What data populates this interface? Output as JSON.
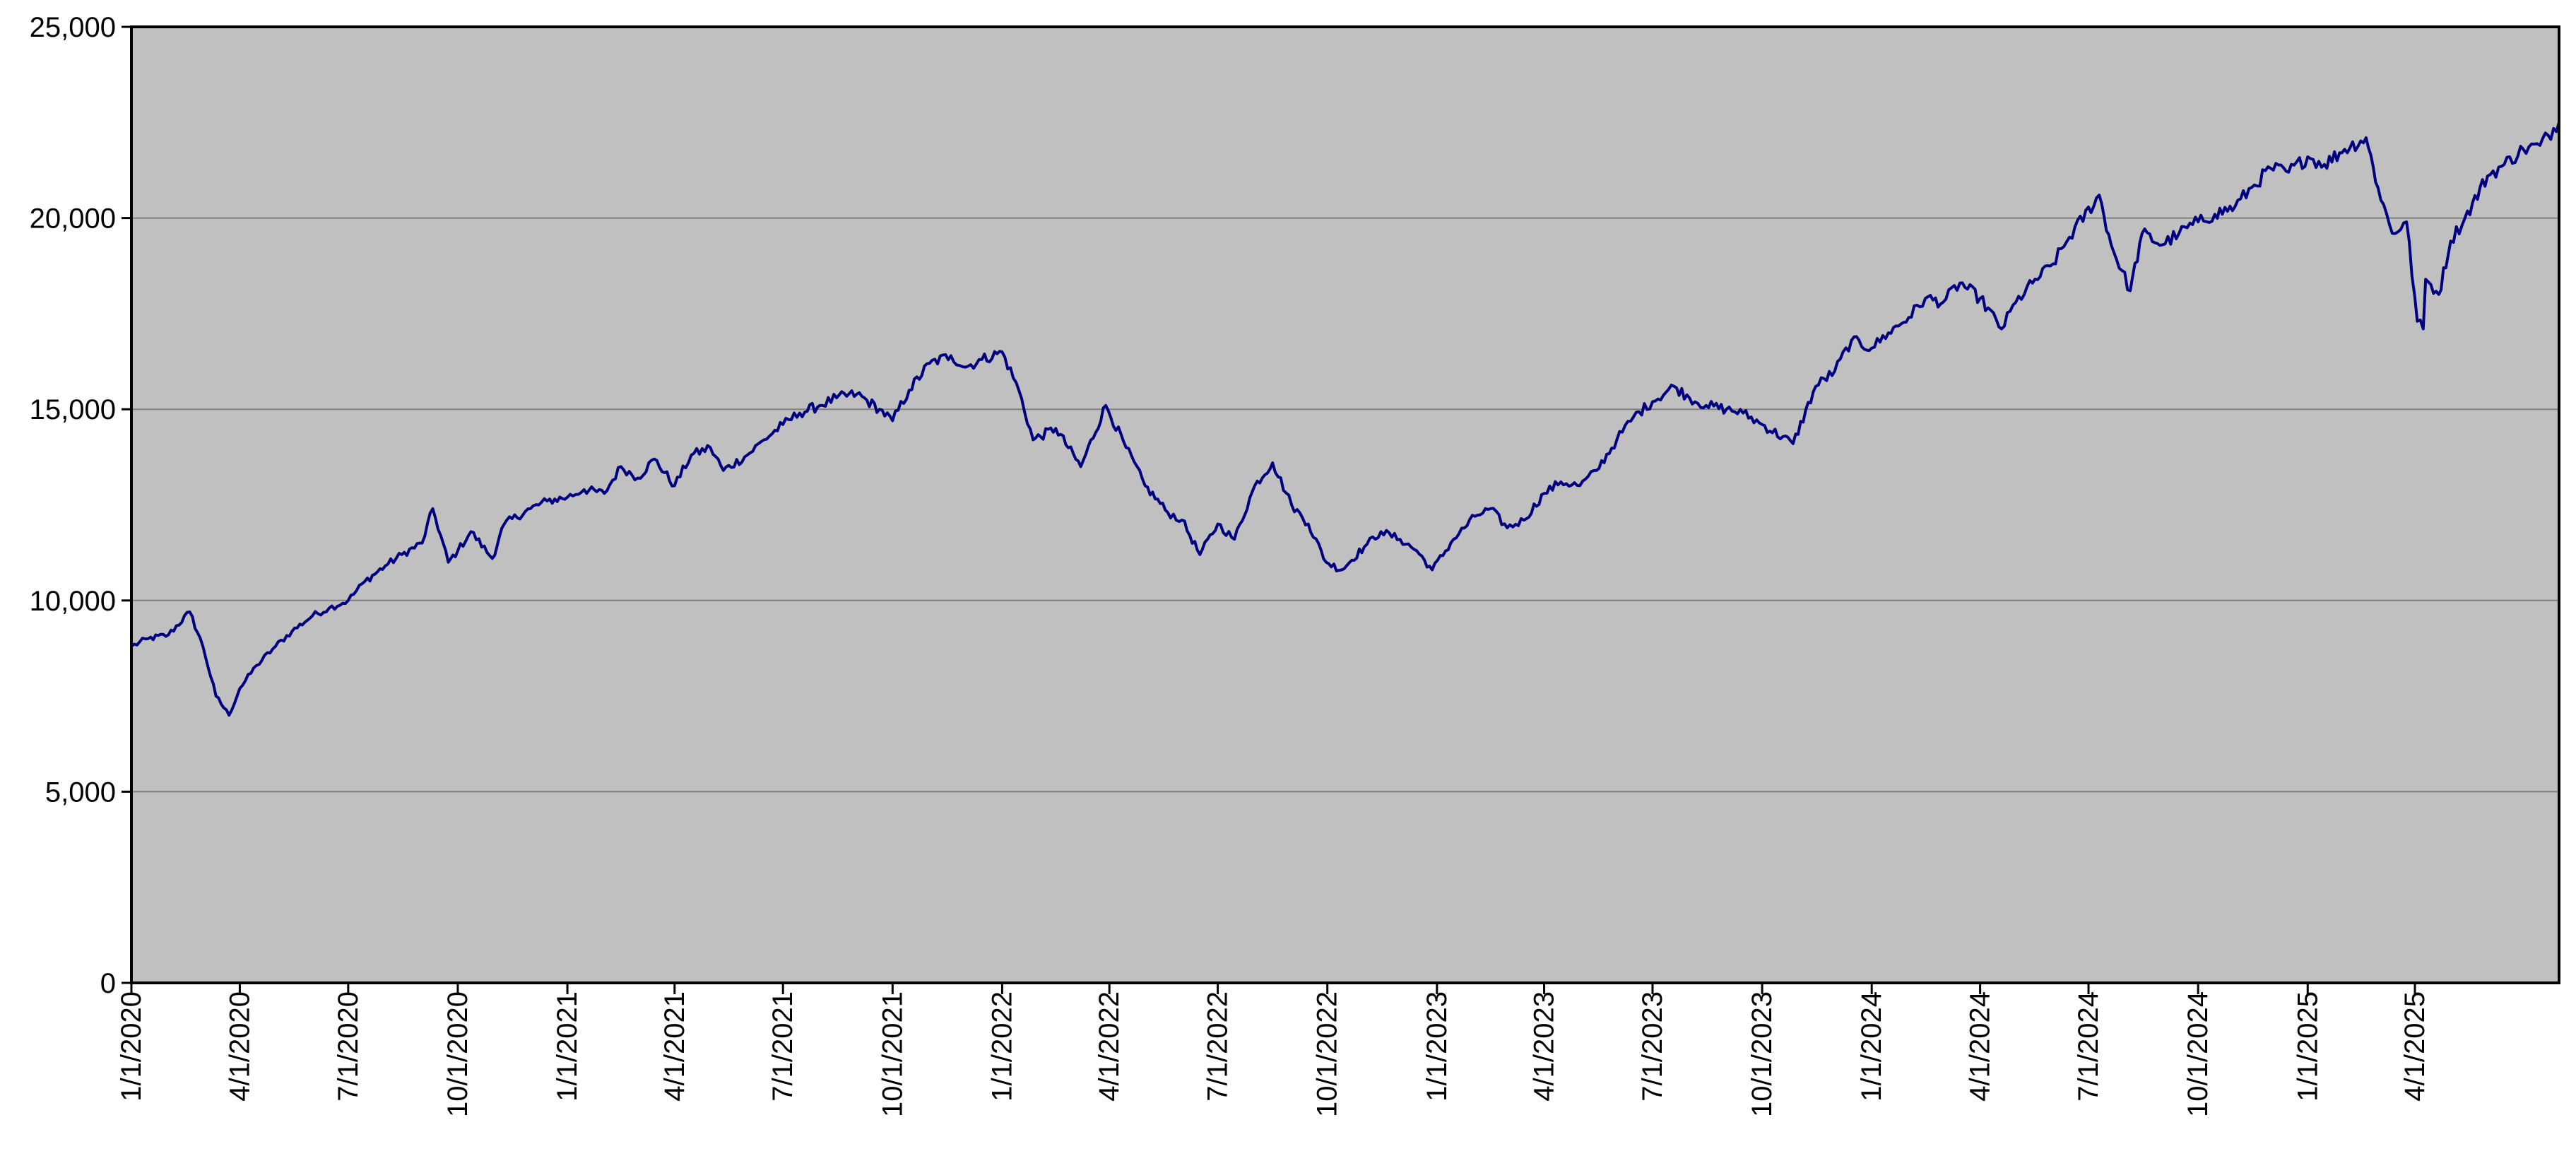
{
  "chart_data": {
    "type": "line",
    "title": "",
    "xlabel": "",
    "ylabel": "",
    "ylim": [
      0,
      25000
    ],
    "y_ticks": [
      0,
      5000,
      10000,
      15000,
      20000,
      25000
    ],
    "y_tick_labels": [
      "0",
      "5,000",
      "10,000",
      "15,000",
      "20,000",
      "25,000"
    ],
    "x_range": [
      "2020-01-01",
      "2025-07-31"
    ],
    "x_ticks": [
      "2020-01-01",
      "2020-04-01",
      "2020-07-01",
      "2020-10-01",
      "2021-01-01",
      "2021-04-01",
      "2021-07-01",
      "2021-10-01",
      "2022-01-01",
      "2022-04-01",
      "2022-07-01",
      "2022-10-01",
      "2023-01-01",
      "2023-04-01",
      "2023-07-01",
      "2023-10-01",
      "2024-01-01",
      "2024-04-01",
      "2024-07-01",
      "2024-10-01",
      "2025-01-01",
      "2025-04-01"
    ],
    "x_tick_labels": [
      "1/1/2020",
      "4/1/2020",
      "7/1/2020",
      "10/1/2020",
      "1/1/2021",
      "4/1/2021",
      "7/1/2021",
      "10/1/2021",
      "1/1/2022",
      "4/1/2022",
      "7/1/2022",
      "10/1/2022",
      "1/1/2023",
      "4/1/2023",
      "7/1/2023",
      "10/1/2023",
      "1/1/2024",
      "4/1/2024",
      "7/1/2024",
      "10/1/2024",
      "1/1/2025",
      "4/1/2025"
    ],
    "grid": true,
    "legend": "none",
    "colors": {
      "plot_background": "#c0c0c0",
      "line": "#000080",
      "gridline": "#808080",
      "axis": "#000000"
    },
    "series": [
      {
        "x": [
          "2020-01-01",
          "2020-01-15",
          "2020-02-01",
          "2020-02-19",
          "2020-03-01",
          "2020-03-12",
          "2020-03-23",
          "2020-04-01",
          "2020-04-15",
          "2020-05-01",
          "2020-05-15",
          "2020-06-01",
          "2020-06-15",
          "2020-07-01",
          "2020-07-15",
          "2020-08-01",
          "2020-08-15",
          "2020-09-01",
          "2020-09-10",
          "2020-09-23",
          "2020-10-01",
          "2020-10-12",
          "2020-10-30",
          "2020-11-09",
          "2020-12-01",
          "2020-12-15",
          "2021-01-01",
          "2021-01-15",
          "2021-02-01",
          "2021-02-15",
          "2021-03-01",
          "2021-03-15",
          "2021-04-01",
          "2021-04-15",
          "2021-05-01",
          "2021-05-12",
          "2021-06-01",
          "2021-06-15",
          "2021-07-01",
          "2021-07-15",
          "2021-08-01",
          "2021-08-15",
          "2021-09-01",
          "2021-09-20",
          "2021-10-01",
          "2021-10-15",
          "2021-11-01",
          "2021-11-19",
          "2021-12-01",
          "2021-12-15",
          "2022-01-01",
          "2022-01-15",
          "2022-01-27",
          "2022-02-15",
          "2022-03-08",
          "2022-03-29",
          "2022-04-15",
          "2022-05-01",
          "2022-05-20",
          "2022-06-01",
          "2022-06-16",
          "2022-07-01",
          "2022-07-15",
          "2022-08-01",
          "2022-08-16",
          "2022-09-01",
          "2022-09-15",
          "2022-09-30",
          "2022-10-13",
          "2022-11-01",
          "2022-11-15",
          "2022-12-01",
          "2022-12-15",
          "2022-12-28",
          "2023-01-15",
          "2023-02-02",
          "2023-02-15",
          "2023-03-01",
          "2023-03-15",
          "2023-04-01",
          "2023-04-15",
          "2023-05-01",
          "2023-05-15",
          "2023-06-01",
          "2023-06-15",
          "2023-07-01",
          "2023-07-19",
          "2023-08-01",
          "2023-08-15",
          "2023-09-01",
          "2023-09-15",
          "2023-10-01",
          "2023-10-27",
          "2023-11-15",
          "2023-12-01",
          "2023-12-15",
          "2024-01-01",
          "2024-01-15",
          "2024-02-01",
          "2024-02-15",
          "2024-03-01",
          "2024-03-15",
          "2024-04-01",
          "2024-04-19",
          "2024-05-01",
          "2024-05-15",
          "2024-06-01",
          "2024-06-15",
          "2024-07-10",
          "2024-07-20",
          "2024-08-05",
          "2024-08-15",
          "2024-09-01",
          "2024-09-15",
          "2024-10-01",
          "2024-10-15",
          "2024-11-01",
          "2024-11-15",
          "2024-12-01",
          "2024-12-16",
          "2025-01-01",
          "2025-01-15",
          "2025-02-01",
          "2025-02-19",
          "2025-03-01",
          "2025-03-13",
          "2025-03-25",
          "2025-04-03",
          "2025-04-08",
          "2025-04-10",
          "2025-04-21",
          "2025-05-01",
          "2025-05-13",
          "2025-06-01",
          "2025-06-15",
          "2025-07-01",
          "2025-07-15",
          "2025-07-31"
        ],
        "values": [
          8800,
          9000,
          9100,
          9700,
          8800,
          7500,
          7000,
          7700,
          8300,
          8800,
          9200,
          9600,
          9800,
          10000,
          10500,
          10900,
          11200,
          11500,
          12400,
          11000,
          11300,
          11800,
          11100,
          12000,
          12400,
          12600,
          12700,
          12900,
          12800,
          13500,
          13200,
          13700,
          13000,
          13800,
          14000,
          13400,
          13800,
          14200,
          14600,
          14900,
          15100,
          15300,
          15400,
          15000,
          14700,
          15500,
          16200,
          16400,
          16100,
          16300,
          16500,
          15500,
          14200,
          14500,
          13500,
          15100,
          14000,
          13000,
          12300,
          12100,
          11200,
          12000,
          11600,
          13000,
          13600,
          12500,
          12000,
          11000,
          10800,
          11400,
          11800,
          11600,
          11300,
          10800,
          11600,
          12200,
          12400,
          11900,
          12100,
          12800,
          13100,
          13000,
          13400,
          14200,
          14800,
          15200,
          15600,
          15300,
          15100,
          15000,
          14900,
          14600,
          14100,
          15600,
          16000,
          16800,
          16600,
          17000,
          17400,
          17900,
          17800,
          18300,
          17900,
          17100,
          17800,
          18300,
          18800,
          19500,
          20600,
          19300,
          18100,
          19600,
          19300,
          19600,
          19900,
          20100,
          20300,
          20800,
          21300,
          21200,
          21600,
          21400,
          21800,
          22100,
          20800,
          19600,
          19900,
          17300,
          17100,
          18400,
          18000,
          19400,
          20000,
          21100,
          21400,
          21800,
          21900,
          22500
        ]
      }
    ]
  }
}
